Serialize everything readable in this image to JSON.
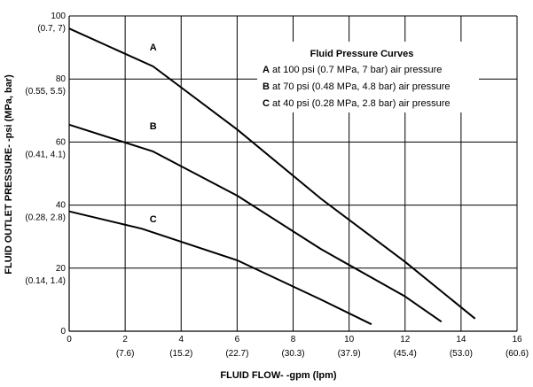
{
  "chart_data": {
    "type": "line",
    "xlabel": "FLUID FLOW- -gpm (lpm)",
    "ylabel": "FLUID OUTLET PRESSURE- -psi (MPa, bar)",
    "xlim": [
      0,
      16
    ],
    "ylim": [
      0,
      100
    ],
    "x_ticks": [
      {
        "value": 0,
        "primary": "0",
        "secondary": ""
      },
      {
        "value": 2,
        "primary": "2",
        "secondary": "(7.6)"
      },
      {
        "value": 4,
        "primary": "4",
        "secondary": "(15.2)"
      },
      {
        "value": 6,
        "primary": "6",
        "secondary": "(22.7)"
      },
      {
        "value": 8,
        "primary": "8",
        "secondary": "(30.3)"
      },
      {
        "value": 10,
        "primary": "10",
        "secondary": "(37.9)"
      },
      {
        "value": 12,
        "primary": "12",
        "secondary": "(45.4)"
      },
      {
        "value": 14,
        "primary": "14",
        "secondary": "(53.0)"
      },
      {
        "value": 16,
        "primary": "16",
        "secondary": "(60.6)"
      }
    ],
    "y_ticks": [
      {
        "value": 0,
        "primary": "0",
        "secondary": ""
      },
      {
        "value": 20,
        "primary": "20",
        "secondary": "(0.14, 1.4)"
      },
      {
        "value": 40,
        "primary": "40",
        "secondary": "(0.28, 2.8)"
      },
      {
        "value": 60,
        "primary": "60",
        "secondary": "(0.41, 4.1)"
      },
      {
        "value": 80,
        "primary": "80",
        "secondary": "(0.55, 5.5)"
      },
      {
        "value": 100,
        "primary": "100",
        "secondary": "(0.7, 7)"
      }
    ],
    "grid": true,
    "series": [
      {
        "name": "A",
        "values": [
          [
            0,
            96
          ],
          [
            3,
            84
          ],
          [
            6,
            64
          ],
          [
            9,
            42
          ],
          [
            12,
            22
          ],
          [
            14.5,
            4
          ]
        ]
      },
      {
        "name": "B",
        "values": [
          [
            0,
            65.5
          ],
          [
            3,
            57
          ],
          [
            6,
            43
          ],
          [
            9,
            26
          ],
          [
            12,
            11
          ],
          [
            13.3,
            3
          ]
        ]
      },
      {
        "name": "C",
        "values": [
          [
            0,
            38
          ],
          [
            2.6,
            32.5
          ],
          [
            6,
            22.5
          ],
          [
            9,
            10
          ],
          [
            10.8,
            2.2
          ]
        ]
      }
    ],
    "curve_labels": [
      {
        "text": "A",
        "x": 3,
        "y": 89
      },
      {
        "text": "B",
        "x": 3,
        "y": 64
      },
      {
        "text": "C",
        "x": 3,
        "y": 34.5
      }
    ],
    "legend": {
      "title": "Fluid Pressure Curves",
      "position": "top-right",
      "entries": [
        {
          "key": "A",
          "text": " at 100 psi (0.7 MPa, 7 bar) air pressure"
        },
        {
          "key": "B",
          "text": " at 70 psi (0.48 MPa, 4.8 bar) air pressure"
        },
        {
          "key": "C",
          "text": " at 40 psi (0.28 MPa, 2.8 bar) air pressure"
        }
      ]
    }
  }
}
